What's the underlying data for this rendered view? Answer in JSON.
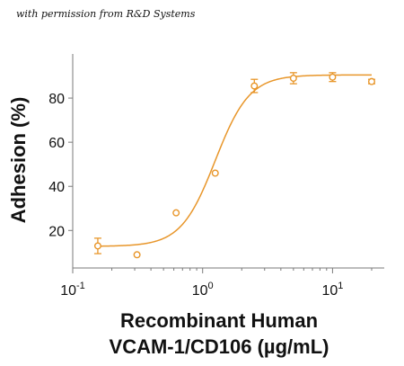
{
  "credit": "with permission from R&D Systems",
  "colors": {
    "series": "#E8962A",
    "axis": "#7a7a7a",
    "text": "#111111"
  },
  "chart_data": {
    "type": "scatter",
    "x_scale": "log",
    "xlim": [
      0.1,
      25
    ],
    "ylim": [
      3,
      100
    ],
    "ylabel": "Adhesion (%)",
    "xlabel_lines": [
      "Recombinant Human",
      "VCAM-1/CD106 (µg/mL)"
    ],
    "y_ticks": [
      20,
      40,
      60,
      80
    ],
    "y_tick_labels": [
      "20",
      "40",
      "60",
      "80"
    ],
    "x_ticks": [
      0.1,
      1,
      10
    ],
    "x_tick_labels": [
      {
        "base": "10",
        "exp": "-1"
      },
      {
        "base": "10",
        "exp": "0"
      },
      {
        "base": "10",
        "exp": "1"
      }
    ],
    "points": [
      {
        "x": 0.156,
        "y": 13.0,
        "err": 3.5
      },
      {
        "x": 0.3125,
        "y": 9.0,
        "err": 0
      },
      {
        "x": 0.625,
        "y": 28.0,
        "err": 0
      },
      {
        "x": 1.25,
        "y": 46.0,
        "err": 0
      },
      {
        "x": 2.5,
        "y": 85.5,
        "err": 3.0
      },
      {
        "x": 5.0,
        "y": 89.0,
        "err": 2.5
      },
      {
        "x": 10.0,
        "y": 89.5,
        "err": 2.0
      },
      {
        "x": 20.0,
        "y": 87.5,
        "err": 1.0
      }
    ],
    "fit": {
      "bottom": 12.8,
      "top": 90.5,
      "ec50": 1.25,
      "hill": 3.3
    },
    "grid": false,
    "legend": "none"
  }
}
